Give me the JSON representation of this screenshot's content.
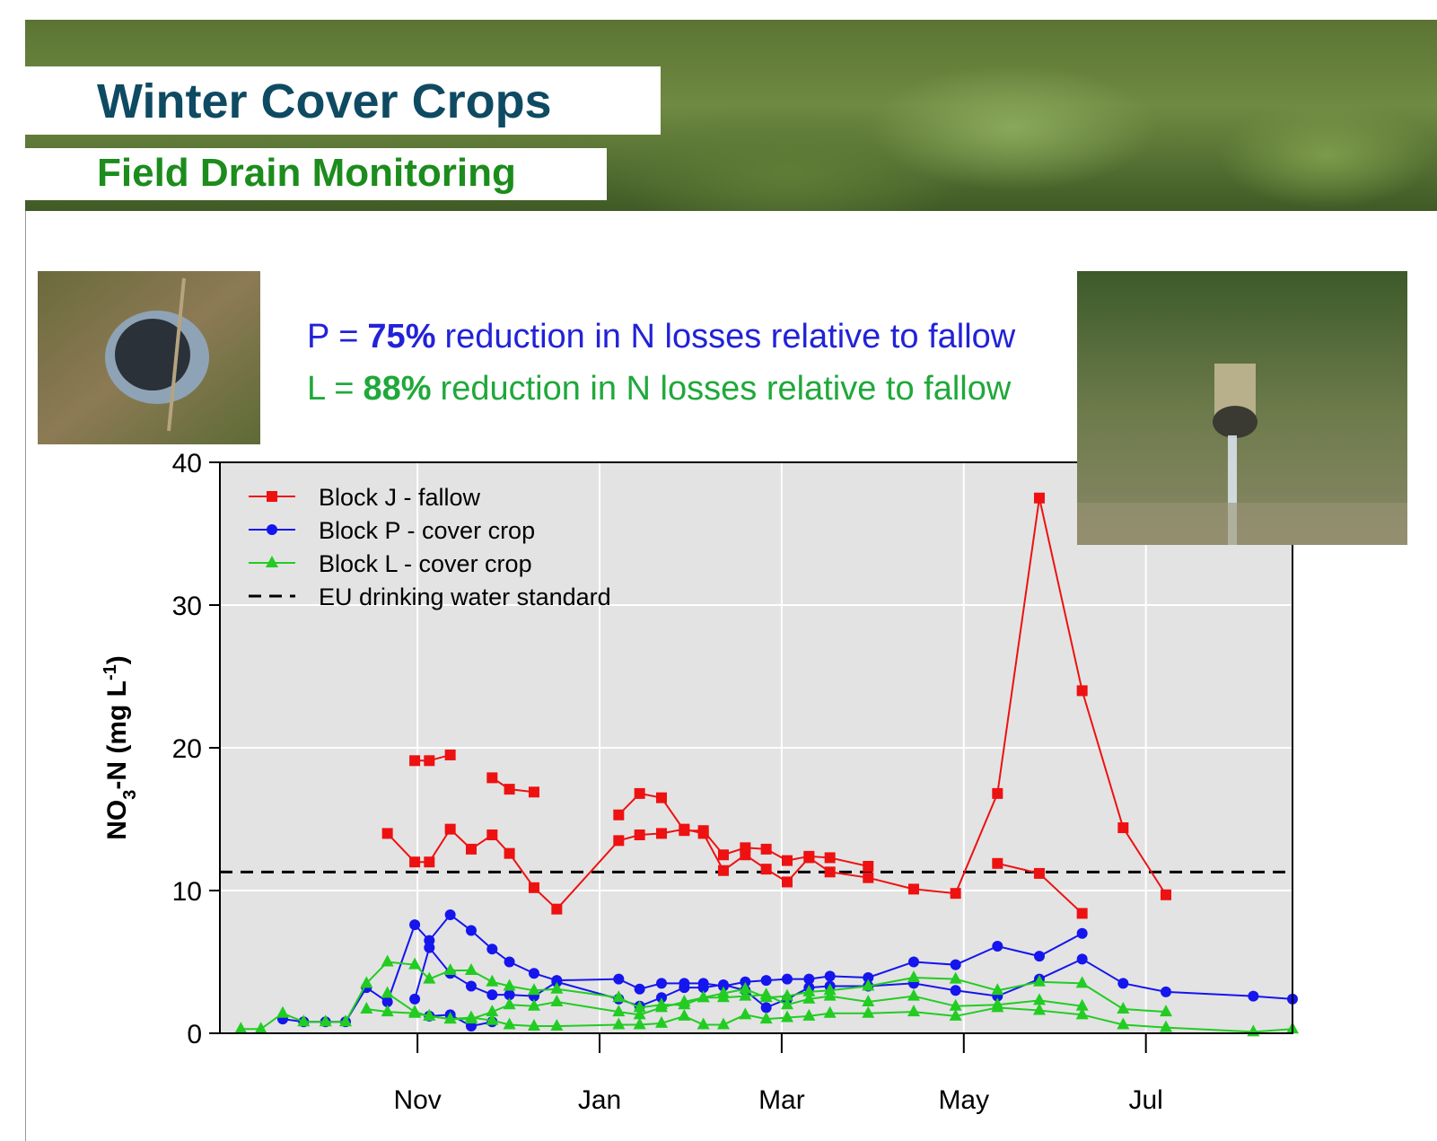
{
  "header": {
    "title": "Winter Cover Crops",
    "subtitle": "Field Drain Monitoring"
  },
  "notes": [
    {
      "lead": "P =",
      "value": "75%",
      "text": "reduction in N losses relative to fallow",
      "color": "#2222d8"
    },
    {
      "lead": "L =",
      "value": "88%",
      "text": "reduction in N losses relative to fallow",
      "color": "#1fa83a"
    }
  ],
  "chart_data": {
    "type": "line",
    "ylabel": [
      "NO",
      "3",
      "-N (mg L",
      "-1",
      ")"
    ],
    "xlim": [
      8.83,
      20.61
    ],
    "xticks": [
      {
        "value": 11,
        "label": "Nov"
      },
      {
        "value": 13,
        "label": "Jan"
      },
      {
        "value": 15,
        "label": "Mar"
      },
      {
        "value": 17,
        "label": "May"
      },
      {
        "value": 19,
        "label": "Jul"
      }
    ],
    "ylim": [
      0,
      40
    ],
    "yticks": [
      0,
      10,
      20,
      30,
      40
    ],
    "grid": true,
    "legend": "top-left",
    "reference": {
      "name": "EU drinking water standard",
      "value": 11.3,
      "color": "#000000"
    },
    "series": [
      {
        "name": "Block J - fallow",
        "color": "#ee1111",
        "marker": "square",
        "lines": [
          {
            "x": [
              10.97,
              11.13,
              11.36
            ],
            "values": [
              19.1,
              19.1,
              19.5
            ]
          },
          {
            "x": [
              11.82,
              12.01,
              12.28
            ],
            "values": [
              17.9,
              17.1,
              16.9
            ]
          },
          {
            "x": [
              13.21,
              13.44,
              13.68,
              13.93,
              14.14,
              14.36,
              14.6,
              14.83,
              15.06,
              15.3,
              15.53,
              15.95
            ],
            "values": [
              15.3,
              16.8,
              16.5,
              14.2,
              14.2,
              12.5,
              13.0,
              12.9,
              12.1,
              12.4,
              12.3,
              11.7
            ]
          },
          {
            "x": [
              17.37,
              17.83,
              18.3
            ],
            "values": [
              11.9,
              11.2,
              8.4
            ]
          },
          {
            "x": [
              10.67,
              10.97,
              11.13,
              11.36,
              11.59,
              11.82,
              12.01,
              12.28,
              12.53,
              13.21,
              13.44,
              13.68,
              13.93,
              14.14,
              14.36,
              14.6,
              14.83,
              15.06,
              15.3,
              15.53,
              15.95,
              16.45,
              16.91,
              17.37,
              17.83,
              18.3,
              18.75,
              19.22
            ],
            "values": [
              14.0,
              12.0,
              12.0,
              14.3,
              12.9,
              13.9,
              12.6,
              10.2,
              8.7,
              13.5,
              13.9,
              14.0,
              14.3,
              14.0,
              11.4,
              12.5,
              11.5,
              10.6,
              12.3,
              11.3,
              10.9,
              10.1,
              9.8,
              16.8,
              37.5,
              24.0,
              14.4,
              9.7
            ]
          }
        ]
      },
      {
        "name": "Block P - cover crop",
        "color": "#1515ee",
        "marker": "circle",
        "lines": [
          {
            "x": [
              9.52,
              9.75,
              9.99,
              10.21,
              10.44,
              10.67,
              10.97,
              11.13,
              11.36,
              11.59,
              11.82,
              12.01,
              12.28,
              12.53,
              13.21,
              13.44,
              13.68,
              13.93,
              14.14,
              14.36,
              14.6,
              14.83,
              15.06,
              15.3,
              15.53,
              15.95,
              16.45,
              16.91,
              17.37,
              17.83,
              18.3
            ],
            "values": [
              1.0,
              0.8,
              0.8,
              0.8,
              3.2,
              2.2,
              7.6,
              6.5,
              8.3,
              7.2,
              5.9,
              5.0,
              4.2,
              3.7,
              3.8,
              3.1,
              3.5,
              3.5,
              3.5,
              3.3,
              3.6,
              3.7,
              3.8,
              3.8,
              4.0,
              3.9,
              5.0,
              4.8,
              6.1,
              5.4,
              7.0
            ]
          },
          {
            "x": [
              10.97,
              11.13,
              11.36,
              11.59,
              11.82,
              12.01,
              12.28,
              12.53,
              13.21,
              13.44,
              13.68,
              13.93,
              14.14,
              14.36,
              14.6,
              14.83,
              15.06,
              15.3,
              15.53,
              15.95,
              16.45,
              16.91,
              17.37,
              17.83,
              18.3,
              18.75,
              19.22,
              20.18,
              20.61
            ],
            "values": [
              2.4,
              6.0,
              4.2,
              3.3,
              2.7,
              2.7,
              2.6,
              3.6,
              2.4,
              1.9,
              2.5,
              3.2,
              3.2,
              3.4,
              3.0,
              1.8,
              2.4,
              3.2,
              3.3,
              3.3,
              3.5,
              3.0,
              2.6,
              3.8,
              5.2,
              3.5,
              2.9,
              2.6,
              2.4
            ]
          },
          {
            "x": [
              11.13,
              11.36,
              11.59,
              11.82
            ],
            "values": [
              1.2,
              1.3,
              0.5,
              0.8
            ]
          }
        ]
      },
      {
        "name": "Block L - cover crop",
        "color": "#22cc22",
        "marker": "triangle",
        "lines": [
          {
            "x": [
              9.06,
              9.28,
              9.52,
              9.75,
              9.99,
              10.21,
              10.44,
              10.67,
              10.97,
              11.13,
              11.36,
              11.59,
              11.82,
              12.01,
              12.28,
              12.53,
              13.21,
              13.44,
              13.68,
              13.93,
              14.14,
              14.36,
              14.6,
              14.83,
              15.06,
              15.3,
              15.53,
              15.95,
              16.45,
              16.91,
              17.37,
              17.83,
              18.3,
              18.75,
              19.22
            ],
            "values": [
              0.3,
              0.3,
              1.4,
              0.8,
              0.8,
              0.8,
              3.5,
              5.0,
              4.8,
              3.8,
              4.4,
              4.4,
              3.6,
              3.3,
              3.0,
              3.1,
              2.5,
              1.8,
              2.0,
              2.0,
              2.5,
              2.8,
              3.1,
              2.5,
              2.6,
              2.9,
              3.0,
              3.3,
              3.9,
              3.8,
              3.0,
              3.6,
              3.5,
              1.7,
              1.5
            ]
          },
          {
            "x": [
              10.44,
              10.67,
              10.97,
              11.13,
              11.36,
              11.59,
              11.82,
              12.01,
              12.28,
              12.53,
              13.21,
              13.44,
              13.68,
              13.93,
              14.14,
              14.36,
              14.6,
              14.83,
              15.06,
              15.3,
              15.53,
              15.95,
              16.45,
              16.91,
              17.37,
              17.83,
              18.3
            ],
            "values": [
              1.7,
              1.5,
              1.4,
              1.2,
              1.0,
              1.0,
              1.5,
              2.0,
              1.9,
              2.2,
              1.5,
              1.3,
              1.8,
              2.2,
              2.5,
              2.5,
              2.6,
              2.7,
              2.0,
              2.4,
              2.6,
              2.2,
              2.6,
              1.9,
              2.0,
              2.3,
              1.9
            ]
          },
          {
            "x": [
              10.67,
              10.97,
              11.13,
              11.36,
              11.59,
              11.82,
              12.01,
              12.28,
              12.53,
              13.21,
              13.44,
              13.68,
              13.93,
              14.14,
              14.36,
              14.6,
              14.83,
              15.06,
              15.3,
              15.53,
              15.95,
              16.45,
              16.91,
              17.37,
              17.83,
              18.3,
              18.75,
              19.22,
              20.18,
              20.61
            ],
            "values": [
              2.8,
              1.5,
              1.2,
              1.0,
              1.1,
              0.9,
              0.6,
              0.5,
              0.5,
              0.6,
              0.6,
              0.7,
              1.2,
              0.6,
              0.6,
              1.3,
              1.0,
              1.1,
              1.2,
              1.4,
              1.4,
              1.5,
              1.2,
              1.8,
              1.6,
              1.3,
              0.6,
              0.4,
              0.1,
              0.3
            ]
          }
        ]
      }
    ]
  }
}
